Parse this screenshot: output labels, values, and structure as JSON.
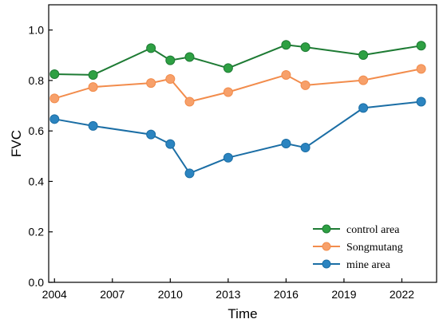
{
  "chart_data": {
    "type": "line",
    "xlabel": "Time",
    "ylabel": "FVC",
    "xlim": [
      2003.7,
      2023.8
    ],
    "ylim": [
      0.0,
      1.1
    ],
    "xticks": [
      2004,
      2007,
      2010,
      2013,
      2016,
      2019,
      2022
    ],
    "xtick_labels": [
      "2004",
      "2007",
      "2010",
      "2013",
      "2016",
      "2019",
      "2022"
    ],
    "yticks": [
      0.0,
      0.2,
      0.4,
      0.6,
      0.8,
      1.0
    ],
    "ytick_labels": [
      "0.0",
      "0.2",
      "0.4",
      "0.6",
      "0.8",
      "1.0"
    ],
    "grid": false,
    "legend_position": "bottom-right",
    "x": [
      2004,
      2006,
      2009,
      2010,
      2011,
      2013,
      2016,
      2017,
      2020,
      2023
    ],
    "series": [
      {
        "name": "control area",
        "color": "#1e7b34",
        "marker_fill": "#2ea043",
        "values": [
          0.825,
          0.822,
          0.928,
          0.88,
          0.893,
          0.849,
          0.941,
          0.932,
          0.901,
          0.938
        ]
      },
      {
        "name": "Songmutang",
        "color": "#f28c4c",
        "marker_fill": "#f7a06a",
        "values": [
          0.729,
          0.774,
          0.79,
          0.806,
          0.716,
          0.754,
          0.822,
          0.781,
          0.801,
          0.846
        ]
      },
      {
        "name": "mine area",
        "color": "#1b6ea5",
        "marker_fill": "#2b84c0",
        "values": [
          0.647,
          0.62,
          0.586,
          0.548,
          0.432,
          0.494,
          0.55,
          0.534,
          0.691,
          0.716
        ]
      }
    ]
  }
}
